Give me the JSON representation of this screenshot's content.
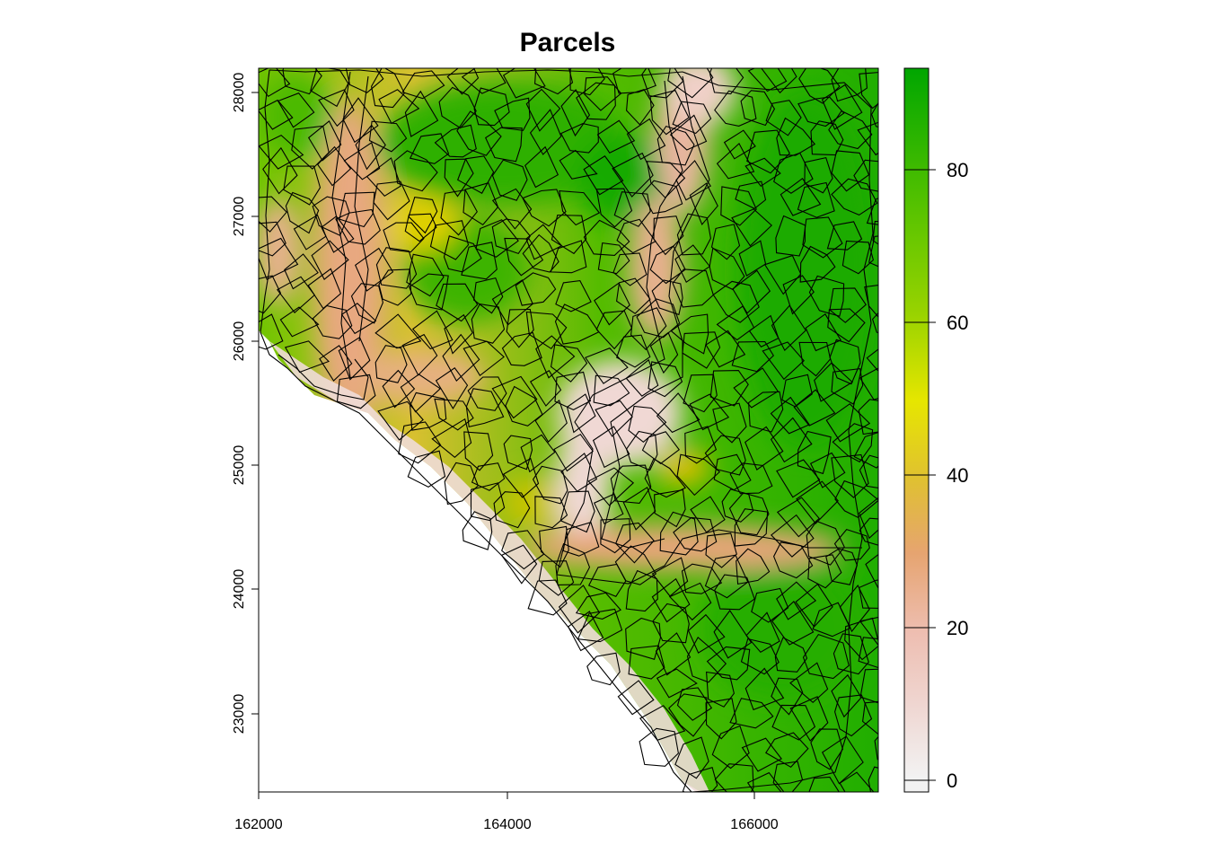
{
  "title": "Parcels",
  "chart_data": {
    "type": "heatmap",
    "title": "Parcels",
    "xlabel": "",
    "ylabel": "",
    "xlim": [
      162000,
      167000
    ],
    "ylim": [
      22350,
      28200
    ],
    "x_ticks": [
      "162000",
      "164000",
      "166000"
    ],
    "y_ticks": [
      "23000",
      "24000",
      "25000",
      "26000",
      "27000",
      "28000"
    ],
    "legend": {
      "position": "right",
      "range": [
        -2,
        93
      ],
      "ticks": [
        "0",
        "20",
        "40",
        "60",
        "80"
      ],
      "colors": [
        "#f2f2f2",
        "#eebeb1",
        "#e6a470",
        "#e0c032",
        "#e6e600",
        "#63c600",
        "#00a600"
      ]
    },
    "overlay": "parcel polygon outlines (black)"
  }
}
